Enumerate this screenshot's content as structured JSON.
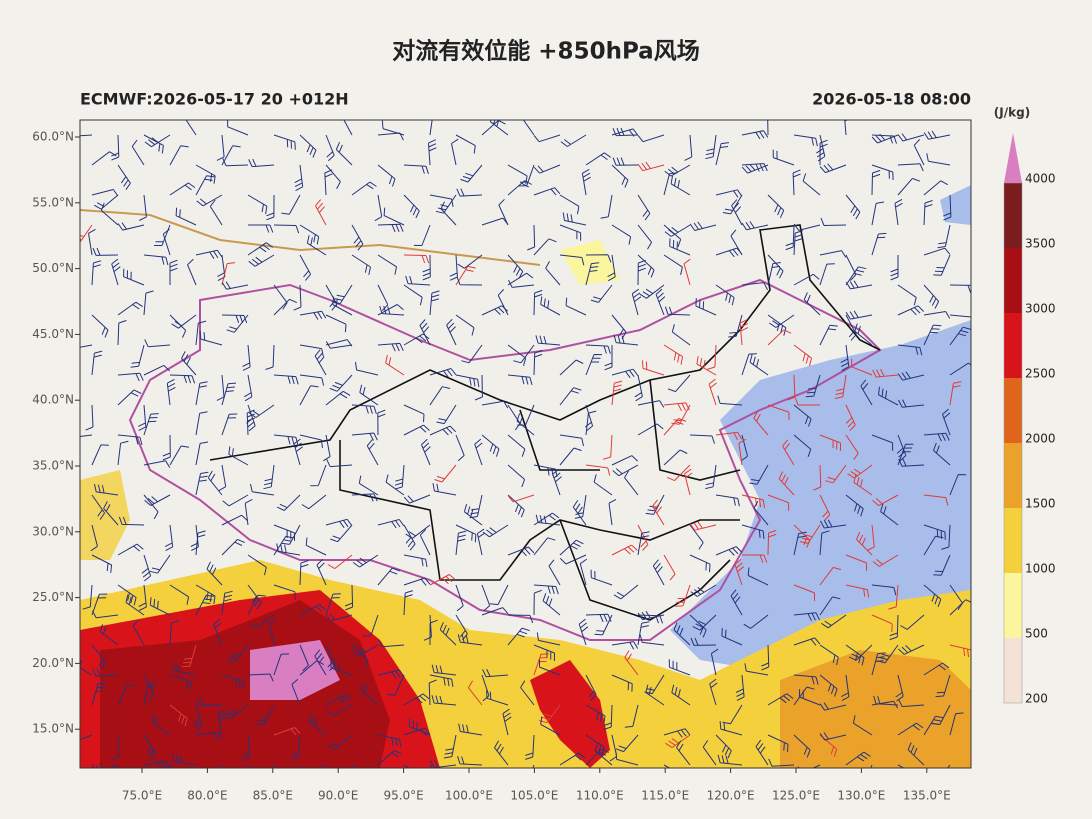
{
  "title": "对流有效位能 +850hPa风场",
  "model_run": "ECMWF:2026-05-17 20 +012H",
  "valid_time": "2026-05-18 08:00",
  "lat_labels": [
    "60.0°N",
    "55.0°N",
    "50.0°N",
    "45.0°N",
    "40.0°N",
    "35.0°N",
    "30.0°N",
    "25.0°N",
    "20.0°N",
    "15.0°N"
  ],
  "lon_labels": [
    "75.0°E",
    "80.0°E",
    "85.0°E",
    "90.0°E",
    "95.0°E",
    "100.0°E",
    "105.0°E",
    "110.0°E",
    "115.0°E",
    "120.0°E",
    "125.0°E",
    "130.0°E",
    "135.0°E"
  ],
  "colorbar": {
    "unit": "(J/kg)",
    "ticks": [
      "4000",
      "3500",
      "3000",
      "2500",
      "2000",
      "1500",
      "1000",
      "500",
      "200"
    ],
    "colors": [
      "#7b1c1f",
      "#a80f15",
      "#d8141a",
      "#e0651c",
      "#eba22b",
      "#f4d03c",
      "#fbf69e",
      "#f5e2d6"
    ],
    "extend_color": "#d97ec0"
  }
}
